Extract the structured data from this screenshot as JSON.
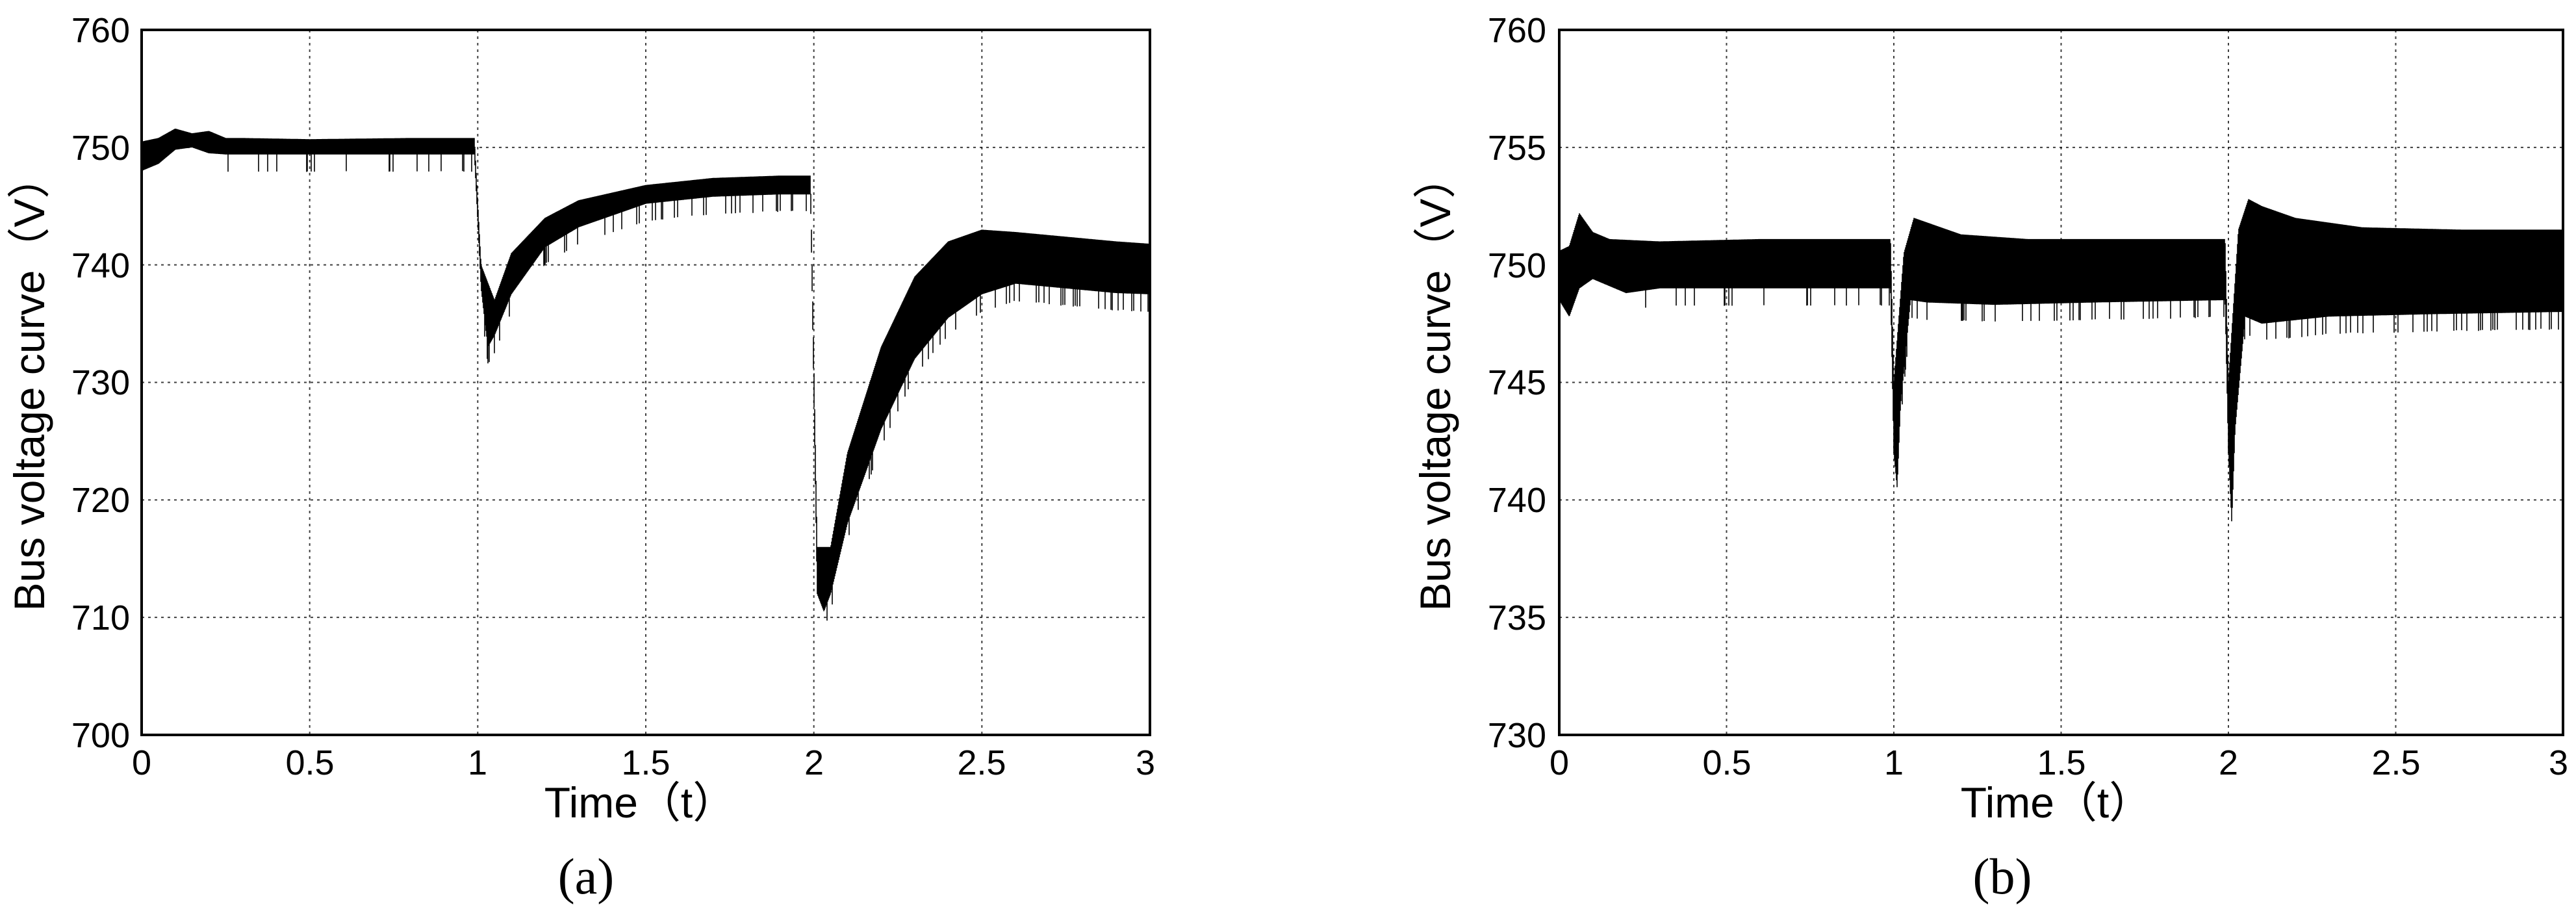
{
  "chart_data": [
    {
      "type": "line",
      "panel": "(a)",
      "xlabel": "Time（t）",
      "ylabel": "Bus voltage curve（V）",
      "xlim": [
        0,
        3
      ],
      "ylim": [
        700,
        760
      ],
      "xticks": [
        "0",
        "0.5",
        "1",
        "1.5",
        "2",
        "2.5",
        "3"
      ],
      "yticks": [
        "700",
        "710",
        "720",
        "730",
        "740",
        "750",
        "760"
      ],
      "grid": true,
      "series": [
        {
          "upper": [
            [
              0,
              750.5
            ],
            [
              0.05,
              750.8
            ],
            [
              0.1,
              751.6
            ],
            [
              0.15,
              751.2
            ],
            [
              0.2,
              751.4
            ],
            [
              0.25,
              750.8
            ],
            [
              0.3,
              750.8
            ],
            [
              0.5,
              750.7
            ],
            [
              0.8,
              750.8
            ],
            [
              0.99,
              750.8
            ],
            [
              1.01,
              740
            ],
            [
              1.05,
              737
            ],
            [
              1.1,
              741
            ],
            [
              1.2,
              744
            ],
            [
              1.3,
              745.5
            ],
            [
              1.5,
              746.8
            ],
            [
              1.7,
              747.4
            ],
            [
              1.9,
              747.6
            ],
            [
              1.99,
              747.6
            ],
            [
              2.01,
              716
            ],
            [
              2.05,
              716
            ],
            [
              2.1,
              724
            ],
            [
              2.2,
              733
            ],
            [
              2.3,
              739
            ],
            [
              2.4,
              742
            ],
            [
              2.5,
              743
            ],
            [
              2.6,
              742.8
            ],
            [
              2.75,
              742.4
            ],
            [
              2.9,
              742.0
            ],
            [
              3.0,
              741.8
            ]
          ],
          "lower": [
            [
              0,
              748.0
            ],
            [
              0.05,
              748.6
            ],
            [
              0.1,
              749.8
            ],
            [
              0.15,
              750.0
            ],
            [
              0.2,
              749.5
            ],
            [
              0.25,
              749.4
            ],
            [
              0.3,
              749.4
            ],
            [
              0.5,
              749.4
            ],
            [
              0.8,
              749.4
            ],
            [
              0.99,
              749.4
            ],
            [
              1.01,
              738
            ],
            [
              1.03,
              733
            ],
            [
              1.05,
              734
            ],
            [
              1.1,
              737.5
            ],
            [
              1.2,
              741.5
            ],
            [
              1.3,
              743.2
            ],
            [
              1.5,
              745.2
            ],
            [
              1.7,
              745.8
            ],
            [
              1.9,
              746.0
            ],
            [
              1.99,
              746.0
            ],
            [
              2.01,
              712
            ],
            [
              2.03,
              710.5
            ],
            [
              2.05,
              712
            ],
            [
              2.1,
              718
            ],
            [
              2.2,
              726
            ],
            [
              2.3,
              732
            ],
            [
              2.4,
              735.5
            ],
            [
              2.5,
              737.5
            ],
            [
              2.6,
              738.4
            ],
            [
              2.75,
              738.0
            ],
            [
              2.9,
              737.6
            ],
            [
              3.0,
              737.5
            ]
          ]
        }
      ]
    },
    {
      "type": "line",
      "panel": "(b)",
      "xlabel": "Time（t）",
      "ylabel": "Bus voltage curve（V）",
      "xlim": [
        0,
        3
      ],
      "ylim": [
        730,
        760
      ],
      "xticks": [
        "0",
        "0.5",
        "1",
        "1.5",
        "2",
        "2.5",
        "3"
      ],
      "yticks": [
        "730",
        "735",
        "740",
        "745",
        "750",
        "755",
        "760"
      ],
      "grid": true,
      "series": [
        {
          "upper": [
            [
              0,
              750.6
            ],
            [
              0.03,
              750.8
            ],
            [
              0.06,
              752.2
            ],
            [
              0.1,
              751.4
            ],
            [
              0.15,
              751.1
            ],
            [
              0.3,
              751.0
            ],
            [
              0.6,
              751.1
            ],
            [
              0.99,
              751.1
            ],
            [
              1.0,
              745
            ],
            [
              1.03,
              750.5
            ],
            [
              1.06,
              752.0
            ],
            [
              1.1,
              751.8
            ],
            [
              1.2,
              751.3
            ],
            [
              1.4,
              751.1
            ],
            [
              1.7,
              751.1
            ],
            [
              1.99,
              751.1
            ],
            [
              2.0,
              745
            ],
            [
              2.03,
              751.5
            ],
            [
              2.06,
              752.8
            ],
            [
              2.1,
              752.5
            ],
            [
              2.2,
              752.0
            ],
            [
              2.4,
              751.6
            ],
            [
              2.7,
              751.5
            ],
            [
              3.0,
              751.5
            ]
          ],
          "lower": [
            [
              0,
              748.5
            ],
            [
              0.03,
              747.8
            ],
            [
              0.06,
              749.0
            ],
            [
              0.1,
              749.4
            ],
            [
              0.15,
              749.1
            ],
            [
              0.2,
              748.8
            ],
            [
              0.3,
              749.0
            ],
            [
              0.6,
              749.0
            ],
            [
              0.99,
              749.0
            ],
            [
              1.0,
              742
            ],
            [
              1.01,
              740.5
            ],
            [
              1.02,
              744
            ],
            [
              1.05,
              748.5
            ],
            [
              1.1,
              748.4
            ],
            [
              1.3,
              748.3
            ],
            [
              1.6,
              748.4
            ],
            [
              1.99,
              748.5
            ],
            [
              2.0,
              742
            ],
            [
              2.01,
              739.0
            ],
            [
              2.02,
              743
            ],
            [
              2.05,
              747.8
            ],
            [
              2.1,
              747.5
            ],
            [
              2.3,
              747.8
            ],
            [
              2.6,
              747.9
            ],
            [
              3.0,
              748.0
            ]
          ]
        }
      ]
    }
  ]
}
